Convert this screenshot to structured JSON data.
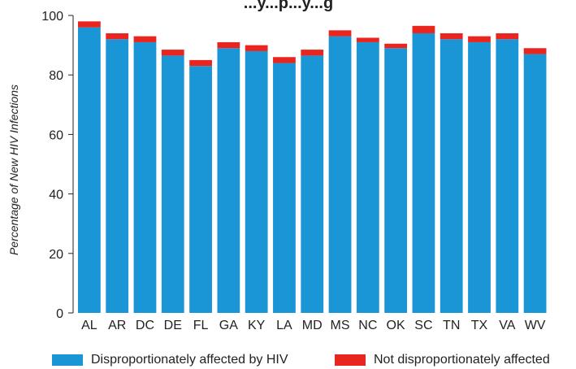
{
  "chart_data": {
    "type": "bar",
    "stacked": true,
    "title": "...y...p...y...g",
    "ylabel": "Percentage of New HIV Infections",
    "xlabel": "",
    "ylim": [
      0,
      100
    ],
    "yticks": [
      0,
      20,
      40,
      60,
      80,
      100
    ],
    "grid": false,
    "legend_position": "bottom",
    "categories": [
      "AL",
      "AR",
      "DC",
      "DE",
      "FL",
      "GA",
      "KY",
      "LA",
      "MD",
      "MS",
      "NC",
      "OK",
      "SC",
      "TN",
      "TX",
      "VA",
      "WV"
    ],
    "series": [
      {
        "name": "Disproportionately affected by HIV",
        "color": "#1a96d6",
        "values": [
          96,
          92,
          91,
          86.5,
          83,
          89,
          88,
          84,
          86.5,
          93,
          91,
          89,
          94,
          92,
          91,
          92,
          87
        ]
      },
      {
        "name": "Not disproportionately affected",
        "color": "#e8251e",
        "values": [
          2,
          2,
          2,
          2,
          2,
          2,
          2,
          2,
          2,
          2,
          1.5,
          1.5,
          2.5,
          2,
          2,
          2,
          2
        ]
      }
    ]
  }
}
